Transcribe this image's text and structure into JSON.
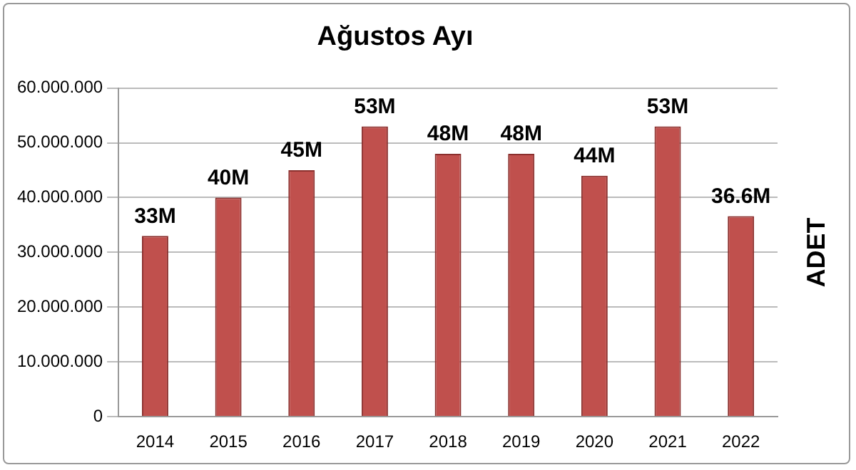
{
  "chart_data": {
    "type": "bar",
    "title": "Ağustos Ayı",
    "ylabel": "ADET",
    "categories": [
      "2014",
      "2015",
      "2016",
      "2017",
      "2018",
      "2019",
      "2020",
      "2021",
      "2022"
    ],
    "values": [
      33000000,
      40000000,
      45000000,
      53000000,
      48000000,
      48000000,
      44000000,
      53000000,
      36600000
    ],
    "value_labels": [
      "33M",
      "40M",
      "45M",
      "53M",
      "48M",
      "48M",
      "44M",
      "53M",
      "36.6M"
    ],
    "color": "#c0504d",
    "ylim": [
      0,
      60000000
    ],
    "yticks": [
      {
        "value": 0,
        "label": "0"
      },
      {
        "value": 10000000,
        "label": "10.000.000"
      },
      {
        "value": 20000000,
        "label": "20.000.000"
      },
      {
        "value": 30000000,
        "label": "30.000.000"
      },
      {
        "value": 40000000,
        "label": "40.000.000"
      },
      {
        "value": 50000000,
        "label": "50.000.000"
      },
      {
        "value": 60000000,
        "label": "60.000.000"
      }
    ],
    "grid": "y"
  }
}
